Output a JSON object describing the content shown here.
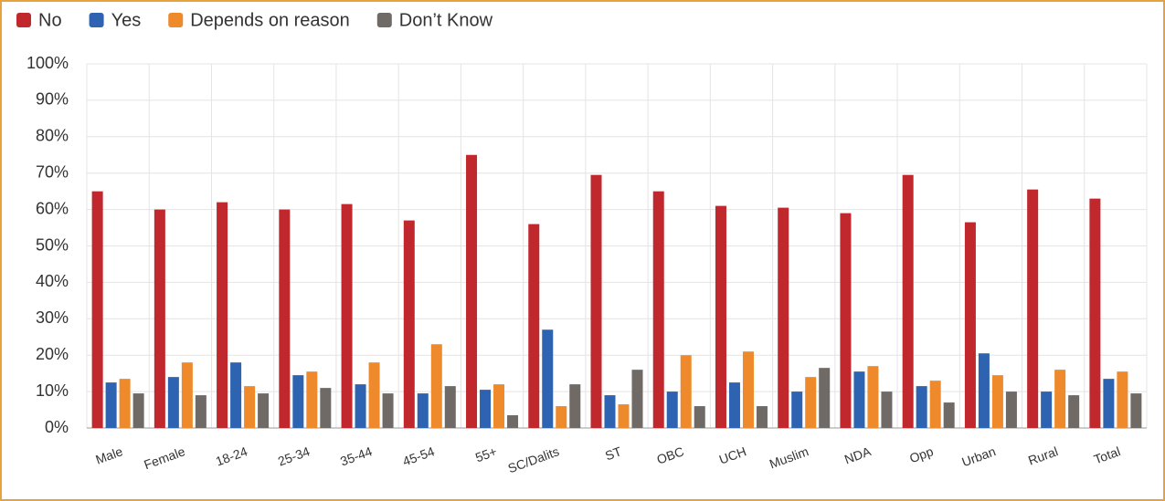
{
  "chart_data": {
    "type": "bar",
    "categories": [
      "Male",
      "Female",
      "18-24",
      "25-34",
      "35-44",
      "45-54",
      "55+",
      "SC/Dalits",
      "ST",
      "OBC",
      "UCH",
      "Muslim",
      "NDA",
      "Opp",
      "Urban",
      "Rural",
      "Total"
    ],
    "series": [
      {
        "name": "No",
        "color": "#c0282d",
        "values": [
          65,
          60,
          62,
          60,
          61.5,
          57,
          75,
          56,
          69.5,
          65,
          61,
          60.5,
          59,
          69.5,
          56.5,
          65.5,
          63
        ]
      },
      {
        "name": "Yes",
        "color": "#2d63b0",
        "values": [
          12.5,
          14,
          18,
          14.5,
          12,
          9.5,
          10.5,
          27,
          9,
          10,
          12.5,
          10,
          15.5,
          11.5,
          20.5,
          10,
          13.5
        ]
      },
      {
        "name": "Depends on reason",
        "color": "#ee8a2c",
        "values": [
          13.5,
          18,
          11.5,
          15.5,
          18,
          23,
          12,
          6,
          6.5,
          20,
          21,
          14,
          17,
          13,
          14.5,
          16,
          15.5
        ]
      },
      {
        "name": "Don’t Know",
        "color": "#6f6a66",
        "values": [
          9.5,
          9,
          9.5,
          11,
          9.5,
          11.5,
          3.5,
          12,
          16,
          6,
          6,
          16.5,
          10,
          7,
          10,
          9,
          9.5
        ]
      }
    ],
    "ylim": [
      0,
      100
    ],
    "yticks": [
      {
        "value": 0,
        "label": "0%"
      },
      {
        "value": 10,
        "label": "10%"
      },
      {
        "value": 20,
        "label": "20%"
      },
      {
        "value": 30,
        "label": "30%"
      },
      {
        "value": 40,
        "label": "40%"
      },
      {
        "value": 50,
        "label": "50%"
      },
      {
        "value": 60,
        "label": "60%"
      },
      {
        "value": 70,
        "label": "70%"
      },
      {
        "value": 80,
        "label": "80%"
      },
      {
        "value": 90,
        "label": "90%"
      },
      {
        "value": 100,
        "label": "100%"
      }
    ],
    "grid": true,
    "legend": "top-left"
  }
}
